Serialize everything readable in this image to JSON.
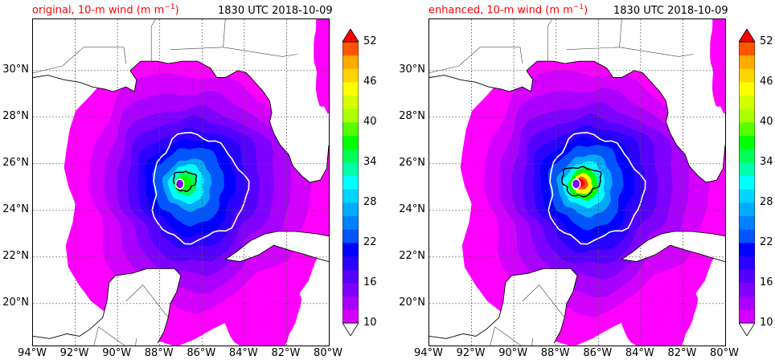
{
  "panels": [
    {
      "title_label": "original, 10-m wind (m m",
      "title_sup": "−1",
      "title_close": ")",
      "timestamp": "1830 UTC 2018-10-09",
      "intensity": "original"
    },
    {
      "title_label": "enhanced, 10-m wind (m m",
      "title_sup": "−1",
      "title_close": ")",
      "timestamp": "1830 UTC 2018-10-09",
      "intensity": "enhanced"
    }
  ],
  "latitudes": [
    "30°N",
    "28°N",
    "26°N",
    "24°N",
    "22°N",
    "20°N"
  ],
  "longitudes": [
    "94°W",
    "92°W",
    "90°W",
    "88°W",
    "86°W",
    "84°W",
    "82°W",
    "80°W"
  ],
  "colorbar": {
    "ticks": [
      "52",
      "46",
      "40",
      "34",
      "28",
      "22",
      "16",
      "10"
    ],
    "min": 10,
    "max": 52,
    "step": 2,
    "colors": [
      "#ff00ff",
      "#d400ff",
      "#aa00ff",
      "#8000ff",
      "#5500ff",
      "#2a00ff",
      "#0000ff",
      "#0055ff",
      "#0080ff",
      "#00aaff",
      "#00d4ff",
      "#00ffff",
      "#00ffaa",
      "#00ff55",
      "#00ff00",
      "#55ff00",
      "#aaff00",
      "#d4ff00",
      "#ffff00",
      "#ffd400",
      "#ffaa00",
      "#ff5500",
      "#ff0000"
    ]
  },
  "map": {
    "lon_range": [
      -94,
      -80
    ],
    "lat_range": [
      18.2,
      32.2
    ],
    "storm_center": {
      "lon": -86.9,
      "lat": 25.2
    }
  },
  "colors": {
    "title": "#ff0000",
    "contour_white": "#ffffff",
    "contour_black": "#000000",
    "grid": "#555555"
  }
}
